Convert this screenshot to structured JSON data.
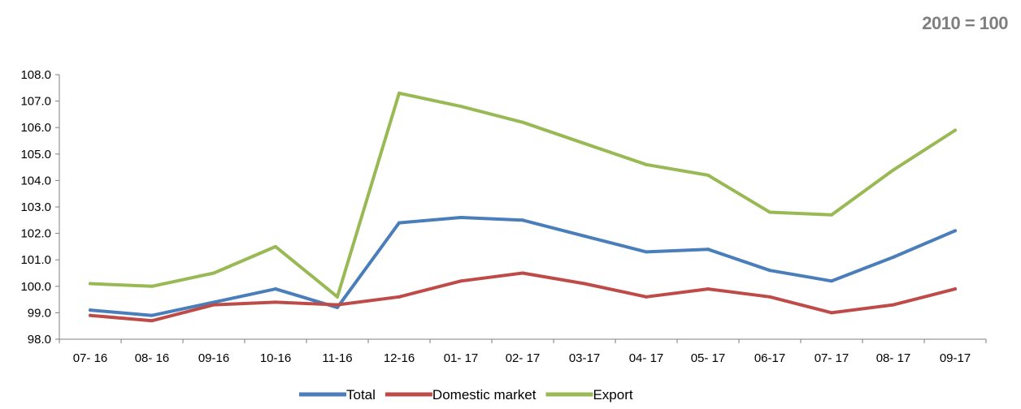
{
  "note": "2010 = 100",
  "chart_data": {
    "type": "line",
    "title": "",
    "xlabel": "",
    "ylabel": "",
    "ylim": [
      98.0,
      108.0
    ],
    "yticks": [
      "98.0",
      "99.0",
      "100.0",
      "101.0",
      "102.0",
      "103.0",
      "104.0",
      "105.0",
      "106.0",
      "107.0",
      "108.0"
    ],
    "categories": [
      "07- 16",
      "08- 16",
      "09-16",
      "10-16",
      "11-16",
      "12-16",
      "01- 17",
      "02- 17",
      "03-17",
      "04- 17",
      "05- 17",
      "06-17",
      "07- 17",
      "08- 17",
      "09-17"
    ],
    "grid": false,
    "legend_position": "bottom",
    "series": [
      {
        "name": "Total",
        "color": "#4a7ebb",
        "values": [
          99.1,
          98.9,
          99.4,
          99.9,
          99.2,
          102.4,
          102.6,
          102.5,
          101.9,
          101.3,
          101.4,
          100.6,
          100.2,
          101.1,
          102.1
        ]
      },
      {
        "name": "Domestic market",
        "color": "#be4b48",
        "values": [
          98.9,
          98.7,
          99.3,
          99.4,
          99.3,
          99.6,
          100.2,
          100.5,
          100.1,
          99.6,
          99.9,
          99.6,
          99.0,
          99.3,
          99.9
        ]
      },
      {
        "name": "Export",
        "color": "#98b954",
        "values": [
          100.1,
          100.0,
          100.5,
          101.5,
          99.6,
          107.3,
          106.8,
          106.2,
          105.4,
          104.6,
          104.2,
          102.8,
          102.7,
          104.4,
          105.9
        ]
      }
    ]
  }
}
